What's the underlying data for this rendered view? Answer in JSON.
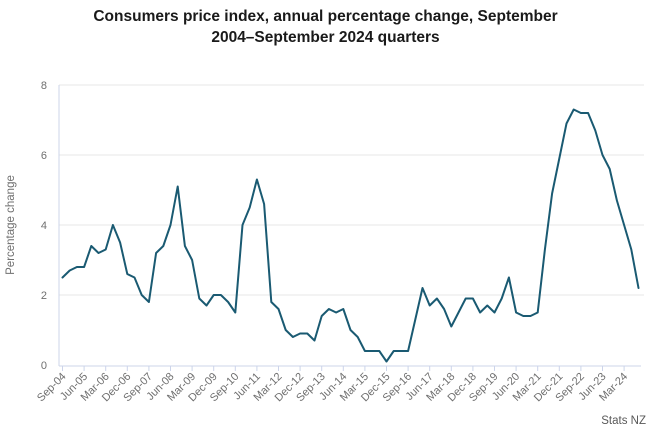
{
  "title": {
    "line1": "Consumers price index, annual percentage change, September",
    "line2": "2004–September 2024 quarters"
  },
  "source": "Stats NZ",
  "chart_data": {
    "type": "line",
    "title": "Consumers price index, annual percentage change, September 2004–September 2024 quarters",
    "xlabel": "",
    "ylabel": "Percentage change",
    "ylim": [
      0,
      8
    ],
    "yticks": [
      0,
      2,
      4,
      6,
      8
    ],
    "grid": "horizontal",
    "legend_position": "none",
    "x_tick_labels": [
      "Sep-04",
      "Jun-05",
      "Mar-06",
      "Dec-06",
      "Sep-07",
      "Jun-08",
      "Mar-09",
      "Dec-09",
      "Sep-10",
      "Jun-11",
      "Mar-12",
      "Dec-12",
      "Sep-13",
      "Jun-14",
      "Mar-15",
      "Dec-15",
      "Sep-16",
      "Jun-17",
      "Mar-18",
      "Dec-18",
      "Sep-19",
      "Jun-20",
      "Mar-21",
      "Dec-21",
      "Sep-22",
      "Jun-23",
      "Mar-24"
    ],
    "quarters_per_tick": 3,
    "series": [
      {
        "name": "CPI annual percentage change",
        "values": [
          2.5,
          2.7,
          2.8,
          2.8,
          3.4,
          3.2,
          3.3,
          4.0,
          3.5,
          2.6,
          2.5,
          2.0,
          1.8,
          3.2,
          3.4,
          4.0,
          5.1,
          3.4,
          3.0,
          1.9,
          1.7,
          2.0,
          2.0,
          1.8,
          1.5,
          4.0,
          4.5,
          5.3,
          4.6,
          1.8,
          1.6,
          1.0,
          0.8,
          0.9,
          0.9,
          0.7,
          1.4,
          1.6,
          1.5,
          1.6,
          1.0,
          0.8,
          0.4,
          0.4,
          0.4,
          0.1,
          0.4,
          0.4,
          0.4,
          1.3,
          2.2,
          1.7,
          1.9,
          1.6,
          1.1,
          1.5,
          1.9,
          1.9,
          1.5,
          1.7,
          1.5,
          1.9,
          2.5,
          1.5,
          1.4,
          1.4,
          1.5,
          3.3,
          4.9,
          5.9,
          6.9,
          7.3,
          7.2,
          7.2,
          6.7,
          6.0,
          5.6,
          4.7,
          4.0,
          3.3,
          2.2
        ]
      }
    ],
    "colors": {
      "line": "#1a5a72",
      "grid": "#e7e7e7",
      "axis": "#ccd4ea",
      "tick_text": "#6f6f6f",
      "title_text": "#1a1a1a",
      "source_text": "#595959"
    }
  }
}
